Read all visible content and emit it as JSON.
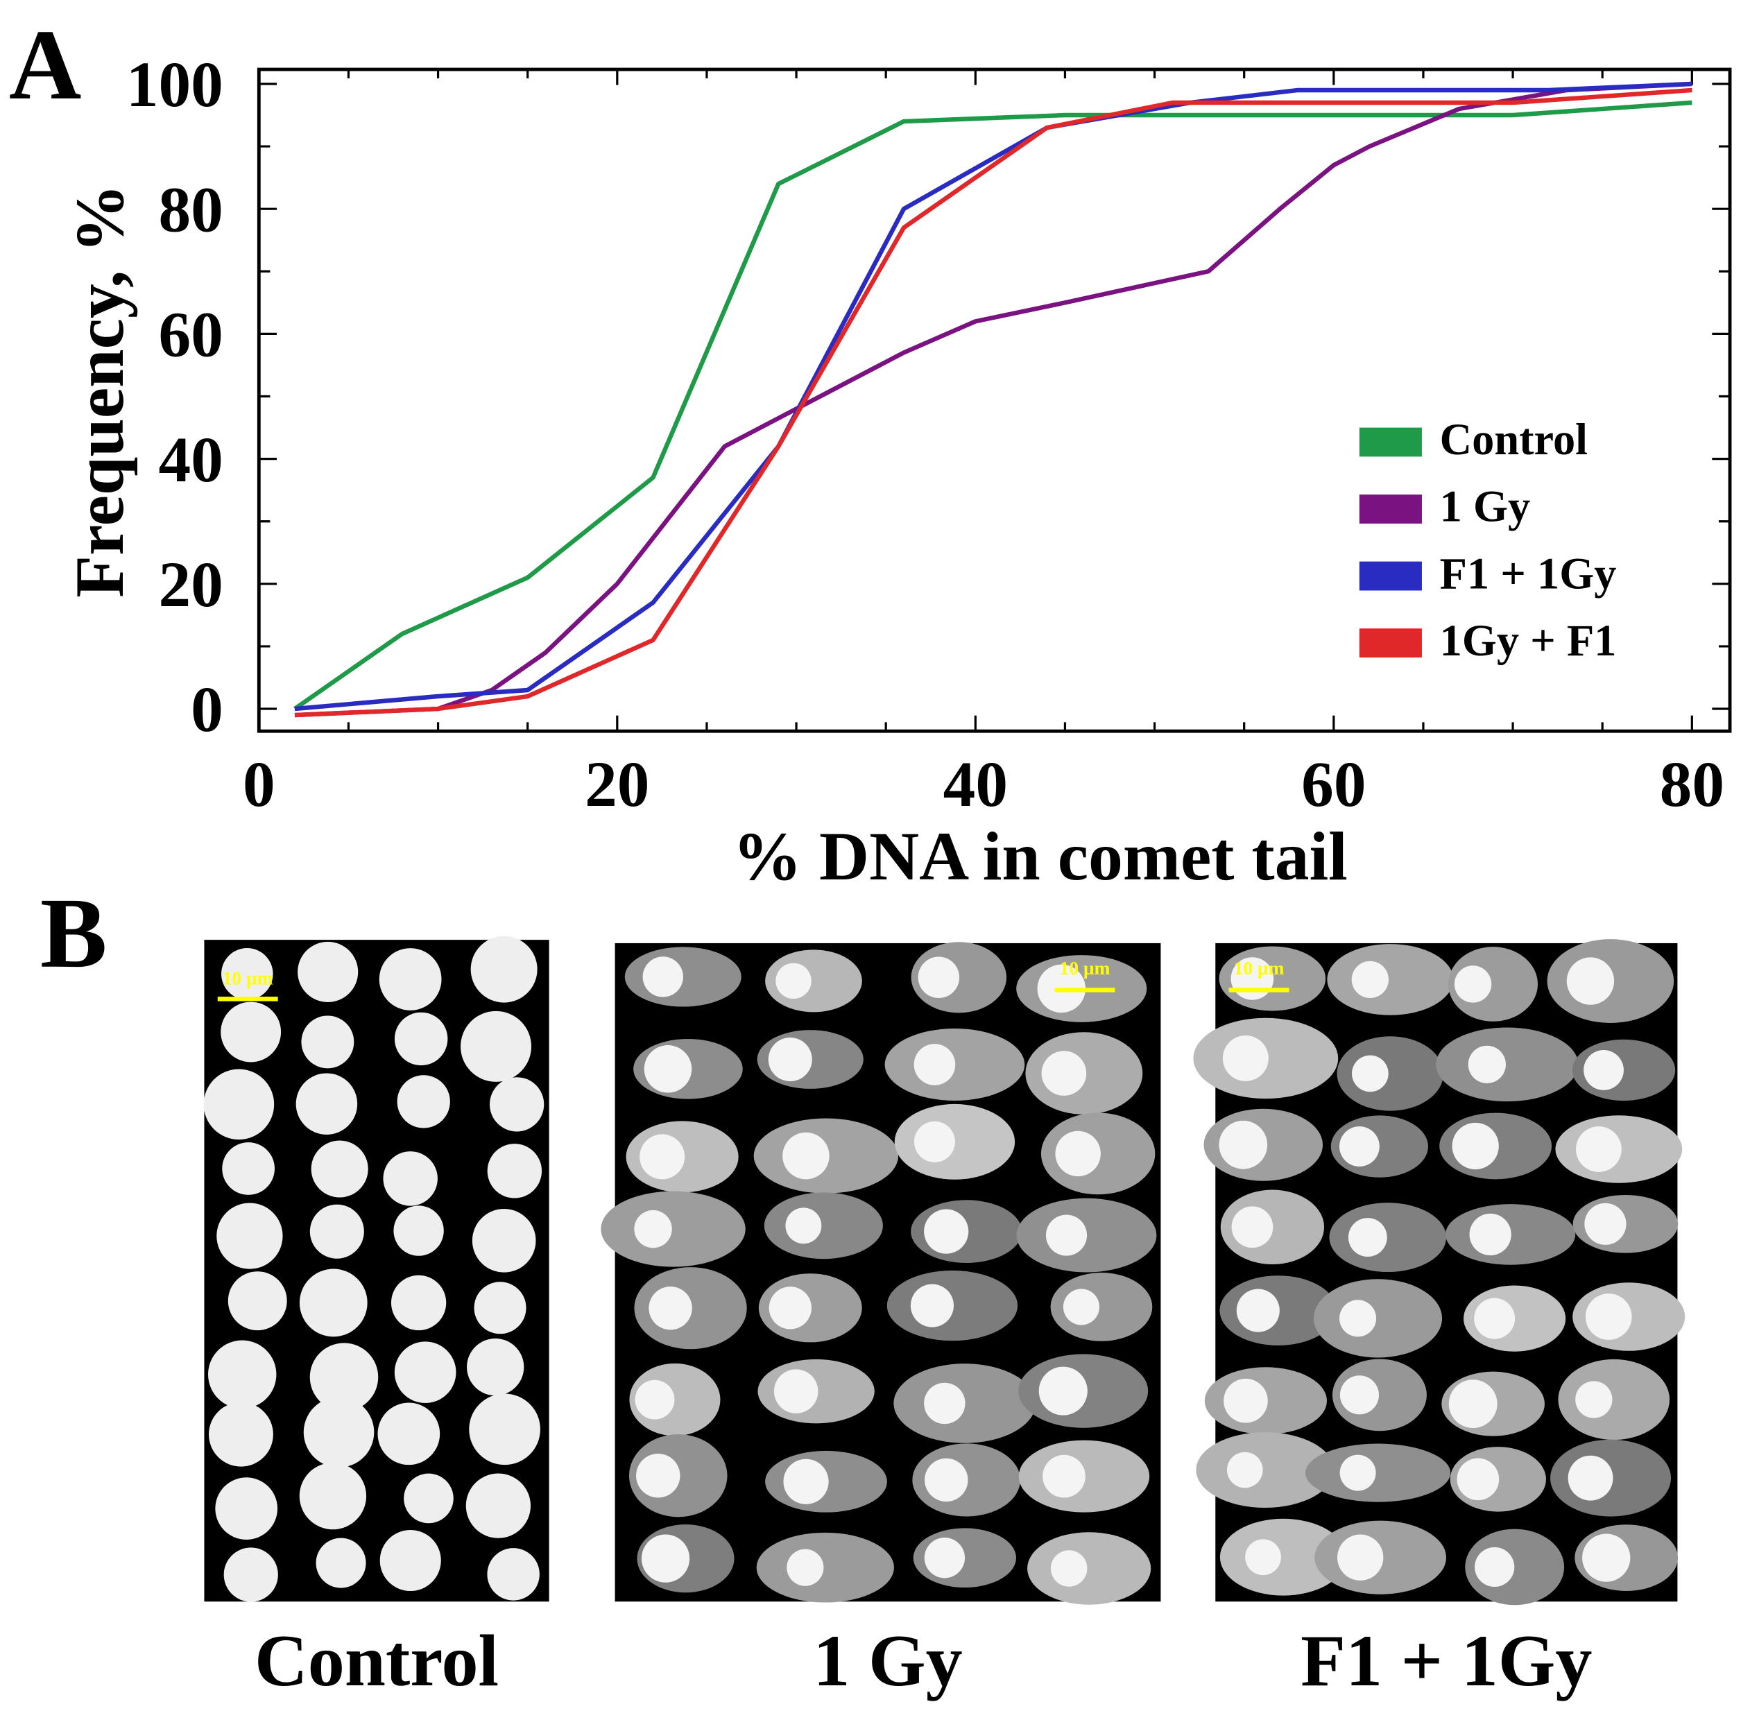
{
  "panel_a_label": "A",
  "panel_b_label": "B",
  "chart_data": {
    "type": "line",
    "xlabel": "% DNA in comet tail",
    "ylabel": "Frequency, %",
    "xlim": [
      0,
      82
    ],
    "ylim": [
      -3,
      103
    ],
    "xticks": [
      0,
      20,
      40,
      60,
      80
    ],
    "yticks": [
      0,
      20,
      40,
      60,
      80,
      100
    ],
    "grid": false,
    "legend_position": "right-middle",
    "series": [
      {
        "name": "Control",
        "color": "#1e9a48",
        "x": [
          2,
          8,
          15,
          22,
          29,
          36,
          45,
          55,
          70,
          80
        ],
        "y": [
          0,
          12,
          21,
          37,
          84,
          94,
          95,
          95,
          95,
          97
        ]
      },
      {
        "name": "1 Gy",
        "color": "#7a1282",
        "x": [
          2,
          10,
          13,
          16,
          20,
          26,
          30,
          36,
          40,
          45,
          53,
          57,
          60,
          62,
          67,
          73,
          80
        ],
        "y": [
          -1,
          0,
          3,
          9,
          20,
          42,
          48,
          57,
          62,
          65,
          70,
          80,
          87,
          90,
          96,
          99,
          100
        ]
      },
      {
        "name": "F1 + 1Gy",
        "color": "#2a2bc0",
        "x": [
          2,
          10,
          15,
          22,
          29,
          36,
          44,
          52,
          58,
          72,
          80
        ],
        "y": [
          0,
          2,
          3,
          17,
          42,
          80,
          93,
          97,
          99,
          99,
          100
        ]
      },
      {
        "name": "1Gy + F1",
        "color": "#e0282a",
        "x": [
          2,
          10,
          15,
          22,
          29,
          36,
          44,
          51,
          60,
          70,
          80
        ],
        "y": [
          -1,
          0,
          2,
          11,
          42,
          77,
          93,
          97,
          97,
          97,
          99
        ]
      }
    ]
  },
  "micrographs": [
    {
      "label": "Control",
      "scale_bar": "10 µm"
    },
    {
      "label": "1 Gy",
      "scale_bar": "10 µm"
    },
    {
      "label": "F1 + 1Gy",
      "scale_bar": "10 µm"
    }
  ],
  "scale_bar_color": "#ffff00"
}
